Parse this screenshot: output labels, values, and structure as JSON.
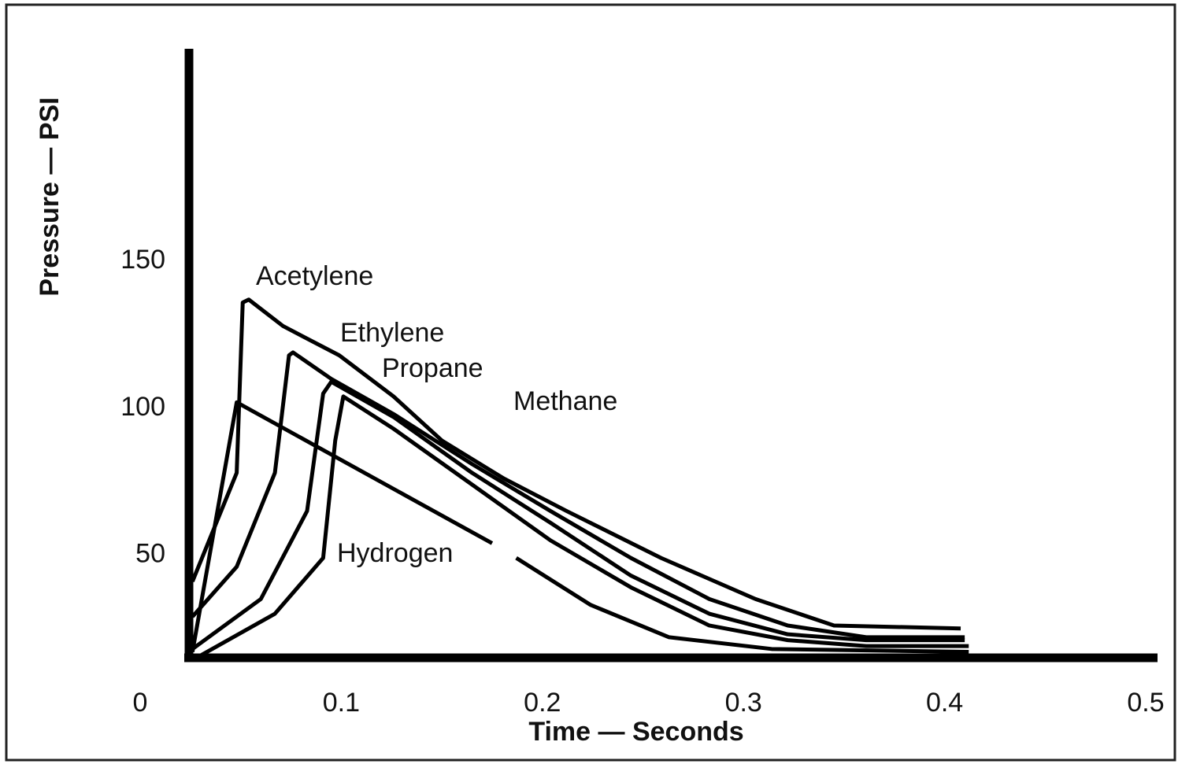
{
  "chart_data": {
    "type": "line",
    "xlabel": "Time — Seconds",
    "ylabel": "Pressure — PSI",
    "xlim": [
      0,
      0.5
    ],
    "ylim": [
      0,
      220
    ],
    "xticks": [
      0,
      0.1,
      0.2,
      0.3,
      0.4,
      0.5
    ],
    "yticks": [
      50,
      100,
      150
    ],
    "grid": false,
    "series": [
      {
        "name": "Acetylene",
        "color": "#000000",
        "x": [
          0.026,
          0.048,
          0.051,
          0.054,
          0.071,
          0.099,
          0.126,
          0.15,
          0.181,
          0.212,
          0.259,
          0.306,
          0.345,
          0.408
        ],
        "values": [
          41,
          78,
          136,
          137,
          128,
          118,
          104,
          89,
          76,
          65,
          49,
          35,
          26,
          25
        ]
      },
      {
        "name": "Ethylene",
        "color": "#000000",
        "x": [
          0.026,
          0.048,
          0.067,
          0.074,
          0.076,
          0.095,
          0.126,
          0.165,
          0.204,
          0.244,
          0.283,
          0.322,
          0.361,
          0.41
        ],
        "values": [
          29,
          46,
          78,
          118,
          119,
          110,
          98,
          81,
          65,
          49,
          35,
          26,
          22,
          22
        ]
      },
      {
        "name": "Propane",
        "color": "#000000",
        "x": [
          0.026,
          0.06,
          0.083,
          0.091,
          0.095,
          0.126,
          0.165,
          0.204,
          0.244,
          0.283,
          0.322,
          0.361,
          0.41
        ],
        "values": [
          18,
          35,
          65,
          105,
          109,
          97,
          78,
          61,
          43,
          30,
          23,
          21,
          21
        ]
      },
      {
        "name": "Methane",
        "color": "#000000",
        "x": [
          0.028,
          0.067,
          0.091,
          0.097,
          0.101,
          0.126,
          0.165,
          0.204,
          0.244,
          0.283,
          0.322,
          0.361,
          0.412
        ],
        "values": [
          15,
          30,
          49,
          89,
          104,
          93,
          74,
          55,
          39,
          26,
          21,
          19,
          19
        ]
      },
      {
        "name": "Hydrogen",
        "color": "#000000",
        "x": [
          0.026,
          0.048,
          0.175,
          0.181,
          0.187,
          0.224,
          0.263,
          0.314,
          0.412
        ],
        "values": [
          17,
          102,
          54,
          null,
          49,
          33,
          22,
          18,
          17
        ]
      }
    ]
  }
}
